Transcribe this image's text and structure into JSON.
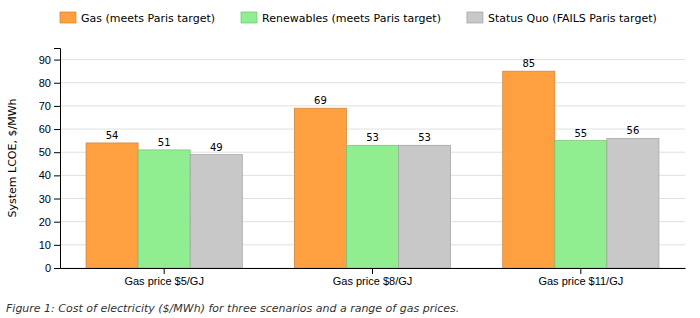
{
  "chart_data": {
    "type": "bar",
    "caption": "Figure 1: Cost of electricity ($/MWh) for three scenarios and a range of gas prices.",
    "y_label": "System LCOE, $/MWh",
    "categories": [
      "Gas price $5/GJ",
      "Gas price $8/GJ",
      "Gas price $11/GJ"
    ],
    "series": [
      {
        "name": "Gas (meets Paris target)",
        "color": "#FFA040",
        "values": [
          54,
          69,
          85
        ]
      },
      {
        "name": "Renewables (meets Paris target)",
        "color": "#90EE90",
        "values": [
          51,
          53,
          55
        ]
      },
      {
        "name": "Status Quo (FAILS Paris target)",
        "color": "#c8c8c8",
        "values": [
          49,
          53,
          56
        ]
      }
    ],
    "ylim": [
      0,
      95
    ],
    "yticks": [
      0,
      10,
      20,
      30,
      40,
      50,
      60,
      70,
      80,
      90
    ],
    "grid": true,
    "legend": "top-left",
    "data_labels": true
  }
}
